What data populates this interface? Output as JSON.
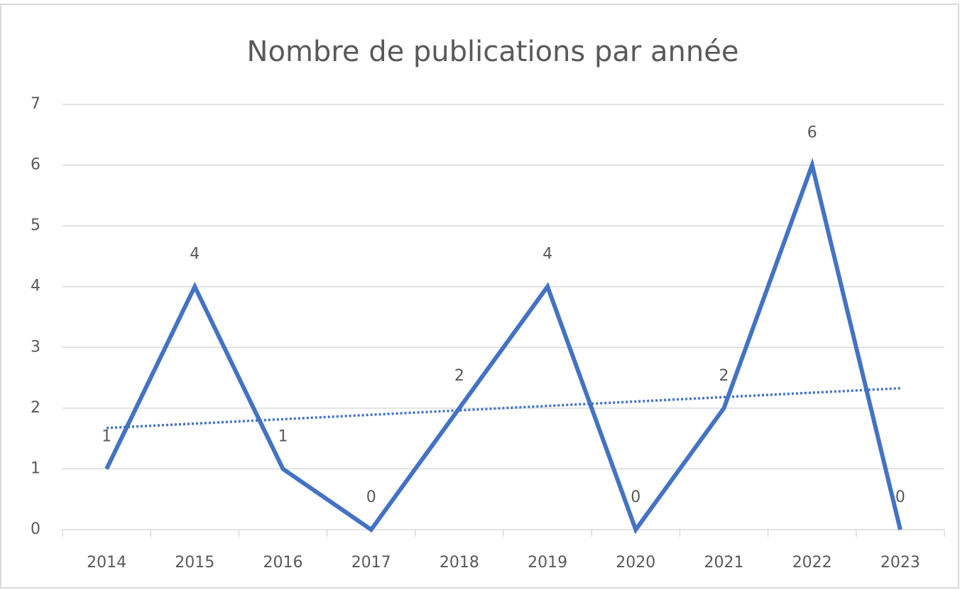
{
  "chart_data": {
    "type": "line",
    "title": "Nombre de publications par année",
    "categories": [
      "2014",
      "2015",
      "2016",
      "2017",
      "2018",
      "2019",
      "2020",
      "2021",
      "2022",
      "2023"
    ],
    "series": [
      {
        "name": "Publications",
        "color": "#4472c4",
        "values": [
          1,
          4,
          1,
          0,
          2,
          4,
          0,
          2,
          6,
          0
        ]
      }
    ],
    "ylim": [
      0,
      7
    ],
    "yticks": [
      0,
      1,
      2,
      3,
      4,
      5,
      6,
      7
    ],
    "grid": true,
    "trendline": "linear",
    "data_labels": true
  }
}
